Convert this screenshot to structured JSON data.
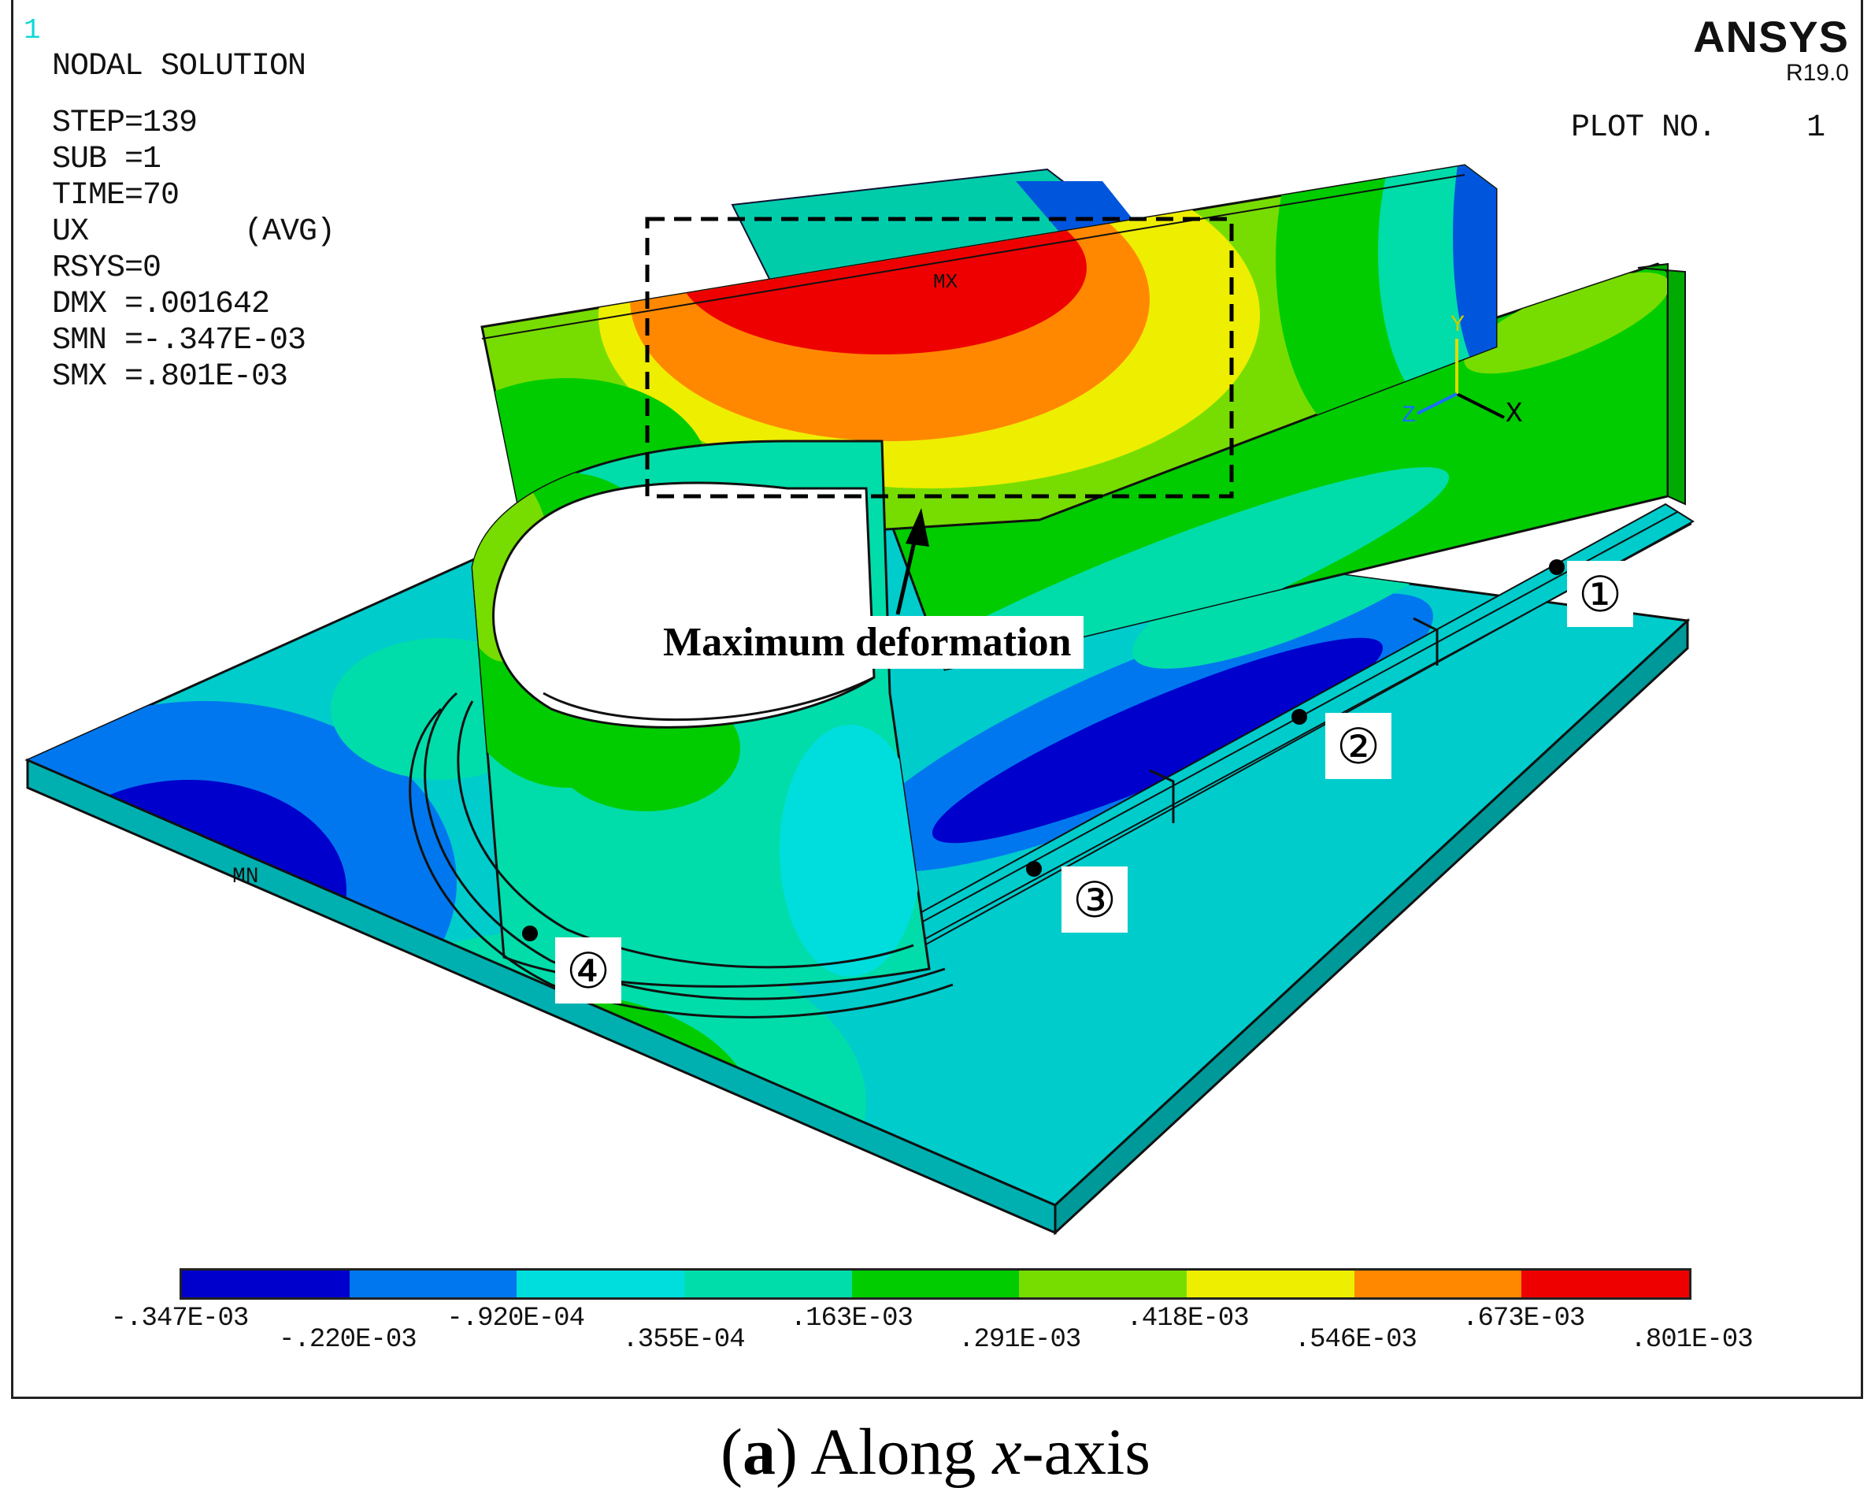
{
  "header": {
    "plot_index": "1",
    "title": "NODAL SOLUTION",
    "step": "STEP=139",
    "sub": "SUB =1",
    "time": "TIME=70",
    "quantity": "UX",
    "avg": "(AVG)",
    "rsys": "RSYS=0",
    "dmx": "DMX =.001642",
    "smn": "SMN =-.347E-03",
    "smx": "SMX =.801E-03"
  },
  "brand": {
    "name": "ANSYS",
    "version": "R19.0"
  },
  "plot_no": {
    "label": "PLOT NO.",
    "value": "1"
  },
  "annotations": {
    "callout": "Maximum deformation",
    "mx": "MX",
    "mn": "MN",
    "markers": [
      "①",
      "②",
      "③",
      "④"
    ]
  },
  "triad": {
    "x": "X",
    "y": "Y",
    "z": "Z"
  },
  "legend": {
    "colors": [
      "#0000cc",
      "#0077ee",
      "#00dddd",
      "#00ddaa",
      "#00cc00",
      "#77dd00",
      "#eeee00",
      "#ff8800",
      "#ee0000"
    ],
    "top_labels": [
      "-.347E-03",
      "-.920E-04",
      ".163E-03",
      ".418E-03",
      ".673E-03"
    ],
    "bottom_labels": [
      "-.220E-03",
      ".355E-04",
      ".291E-03",
      ".546E-03",
      ".801E-03"
    ]
  },
  "caption": {
    "letter": "a",
    "text": "Along",
    "axis": "x",
    "suffix": "-axis"
  }
}
